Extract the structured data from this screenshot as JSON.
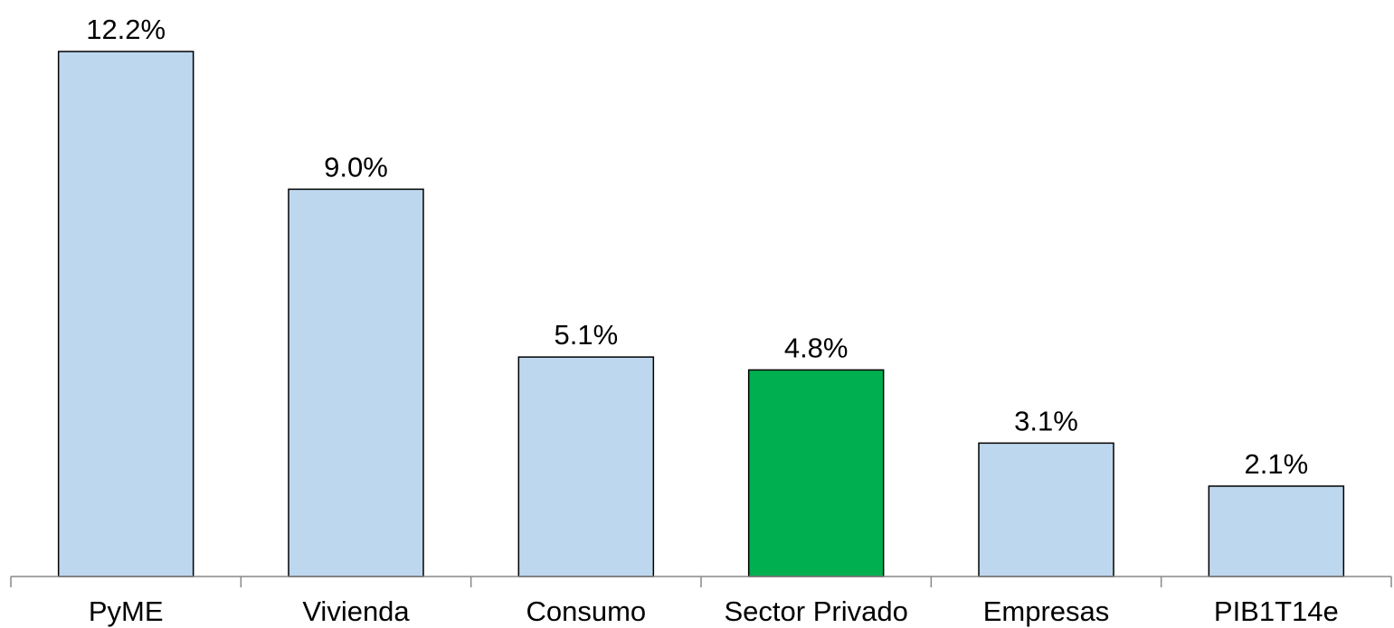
{
  "chart_data": {
    "type": "bar",
    "categories": [
      "PyME",
      "Vivienda",
      "Consumo",
      "Sector Privado",
      "Empresas",
      "PIB1T14e"
    ],
    "values": [
      12.2,
      9.0,
      5.1,
      4.8,
      3.1,
      2.1
    ],
    "value_labels": [
      "12.2%",
      "9.0%",
      "5.1%",
      "4.8%",
      "3.1%",
      "2.1%"
    ],
    "colors": [
      "#bdd7ee",
      "#bdd7ee",
      "#bdd7ee",
      "#00b050",
      "#bdd7ee",
      "#bdd7ee"
    ]
  }
}
